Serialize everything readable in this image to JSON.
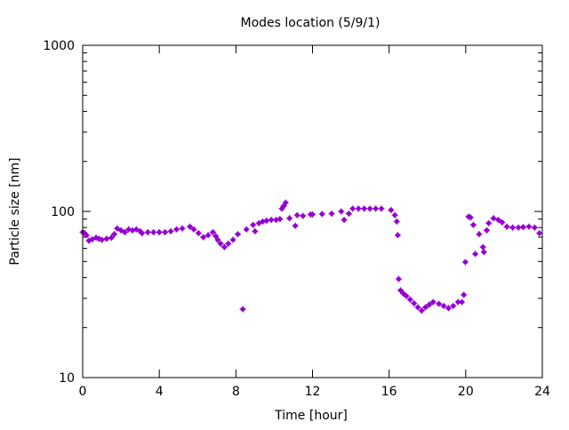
{
  "chart_data": {
    "type": "scatter",
    "title": "Modes location (5/9/1)",
    "xlabel": "Time [hour]",
    "ylabel": "Particle size [nm]",
    "xlim": [
      0,
      24
    ],
    "ylim": [
      10,
      1000
    ],
    "yscale": "log",
    "xticks": [
      "0",
      "4",
      "8",
      "12",
      "16",
      "20",
      "24"
    ],
    "yticks": [
      "10",
      "100",
      "1000"
    ],
    "grid": false,
    "color": "#9400d3",
    "series": [
      {
        "name": "modes",
        "x": [
          0.0,
          0.1,
          0.2,
          0.33,
          0.5,
          0.7,
          0.85,
          1.0,
          1.25,
          1.5,
          1.65,
          1.8,
          2.0,
          2.2,
          2.4,
          2.6,
          2.8,
          3.0,
          3.1,
          3.4,
          3.7,
          4.0,
          4.3,
          4.6,
          4.9,
          5.2,
          5.6,
          5.8,
          6.05,
          6.3,
          6.55,
          6.8,
          6.95,
          7.05,
          7.2,
          7.4,
          7.6,
          7.85,
          8.1,
          8.36,
          8.55,
          8.9,
          9.0,
          9.2,
          9.4,
          9.6,
          9.85,
          10.1,
          10.3,
          10.4,
          10.5,
          10.6,
          10.8,
          11.1,
          11.2,
          11.5,
          11.9,
          12.0,
          12.5,
          13.0,
          13.5,
          13.65,
          13.9,
          14.1,
          14.4,
          14.7,
          15.0,
          15.3,
          15.6,
          16.1,
          16.3,
          16.4,
          16.45,
          16.5,
          16.6,
          16.75,
          16.9,
          17.1,
          17.3,
          17.5,
          17.7,
          17.9,
          18.1,
          18.3,
          18.6,
          18.85,
          19.1,
          19.35,
          19.6,
          19.8,
          19.9,
          19.98,
          20.15,
          20.25,
          20.4,
          20.5,
          20.7,
          20.9,
          20.95,
          21.1,
          21.2,
          21.45,
          21.7,
          21.9,
          22.15,
          22.45,
          22.75,
          23.0,
          23.3,
          23.6,
          23.85
        ],
        "y": [
          75,
          74,
          71.8,
          66.7,
          68,
          69.5,
          68.5,
          67.5,
          68.5,
          69.5,
          73,
          79,
          77,
          75,
          78,
          77,
          78,
          76,
          74,
          75,
          75,
          75,
          75,
          76,
          78,
          79,
          81,
          78,
          74,
          70,
          72,
          75,
          71,
          67.5,
          64,
          61,
          64,
          67.5,
          73,
          25.8,
          78,
          83,
          76,
          85,
          87,
          88,
          89,
          89,
          90,
          104,
          108,
          113,
          91,
          82,
          95,
          94,
          96,
          96,
          96.5,
          97,
          100,
          89,
          97,
          104,
          104,
          104,
          104,
          104,
          104,
          102,
          95,
          87,
          72,
          39.2,
          33.5,
          32,
          31,
          29.5,
          28,
          26.5,
          25.3,
          26.5,
          27.5,
          28.5,
          27.8,
          27,
          26.2,
          27,
          28.5,
          28.5,
          31.5,
          49.6,
          93,
          92,
          83,
          55.5,
          73,
          61,
          57,
          77,
          85,
          91,
          89,
          86,
          81,
          80,
          80,
          80.5,
          81,
          80,
          74
        ]
      }
    ]
  }
}
